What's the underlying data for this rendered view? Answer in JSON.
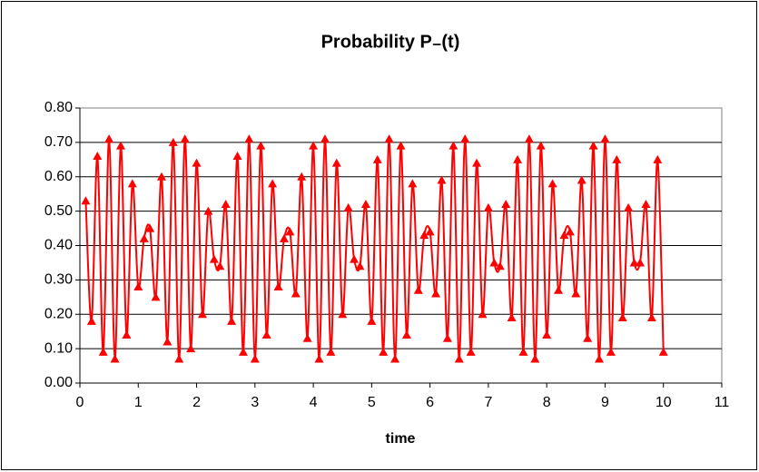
{
  "chart_data": {
    "type": "line",
    "title": "Probability P₋(t)",
    "x_label": "time",
    "x": [
      0.1,
      0.2,
      0.3,
      0.4,
      0.5,
      0.6,
      0.7,
      0.8,
      0.9,
      1.0,
      1.1,
      1.2,
      1.3,
      1.4,
      1.5,
      1.6,
      1.7,
      1.8,
      1.9,
      2.0,
      2.1,
      2.2,
      2.3,
      2.4,
      2.5,
      2.6,
      2.7,
      2.8,
      2.9,
      3.0,
      3.1,
      3.2,
      3.3,
      3.4,
      3.5,
      3.6,
      3.7,
      3.8,
      3.9,
      4.0,
      4.1,
      4.2,
      4.3,
      4.4,
      4.5,
      4.6,
      4.7,
      4.8,
      4.9,
      5.0,
      5.1,
      5.2,
      5.3,
      5.4,
      5.5,
      5.6,
      5.7,
      5.8,
      5.9,
      6.0,
      6.1,
      6.2,
      6.3,
      6.4,
      6.5,
      6.6,
      6.7,
      6.8,
      6.9,
      7.0,
      7.1,
      7.2,
      7.3,
      7.4,
      7.5,
      7.6,
      7.7,
      7.8,
      7.9,
      8.0,
      8.1,
      8.2,
      8.3,
      8.4,
      8.5,
      8.6,
      8.7,
      8.8,
      8.9,
      9.0,
      9.1,
      9.2,
      9.3,
      9.4,
      9.5,
      9.6,
      9.7,
      9.8,
      9.9,
      10.0
    ],
    "series": [
      {
        "color": "#ff0000",
        "values": [
          0.53,
          0.18,
          0.66,
          0.09,
          0.71,
          0.07,
          0.69,
          0.14,
          0.58,
          0.28,
          0.42,
          0.45,
          0.25,
          0.6,
          0.12,
          0.7,
          0.07,
          0.71,
          0.1,
          0.64,
          0.2,
          0.5,
          0.36,
          0.34,
          0.52,
          0.18,
          0.66,
          0.09,
          0.71,
          0.07,
          0.69,
          0.14,
          0.58,
          0.28,
          0.42,
          0.44,
          0.26,
          0.6,
          0.13,
          0.69,
          0.07,
          0.71,
          0.09,
          0.64,
          0.2,
          0.51,
          0.36,
          0.34,
          0.52,
          0.18,
          0.65,
          0.09,
          0.71,
          0.07,
          0.69,
          0.14,
          0.58,
          0.27,
          0.43,
          0.44,
          0.26,
          0.59,
          0.13,
          0.69,
          0.07,
          0.71,
          0.09,
          0.64,
          0.2,
          0.51,
          0.35,
          0.34,
          0.52,
          0.19,
          0.65,
          0.09,
          0.71,
          0.07,
          0.69,
          0.14,
          0.58,
          0.27,
          0.43,
          0.44,
          0.26,
          0.59,
          0.13,
          0.69,
          0.07,
          0.71,
          0.09,
          0.65,
          0.19,
          0.51,
          0.35,
          0.35,
          0.52,
          0.19,
          0.65,
          0.09
        ]
      }
    ],
    "xlim": [
      0,
      11
    ],
    "xticks": [
      0,
      1,
      2,
      3,
      4,
      5,
      6,
      7,
      8,
      9,
      10,
      11
    ],
    "ylim": [
      0,
      0.8
    ],
    "yticks": [
      {
        "value": 0,
        "label": "0.00"
      },
      {
        "value": 0.1,
        "label": "0.10"
      },
      {
        "value": 0.2,
        "label": "0.20"
      },
      {
        "value": 0.3,
        "label": "0.30"
      },
      {
        "value": 0.4,
        "label": "0.40"
      },
      {
        "value": 0.5,
        "label": "0.50"
      },
      {
        "value": 0.6,
        "label": "0.60"
      },
      {
        "value": 0.7,
        "label": "0.70"
      },
      {
        "value": 0.8,
        "label": "0.80"
      }
    ],
    "grid": true
  }
}
